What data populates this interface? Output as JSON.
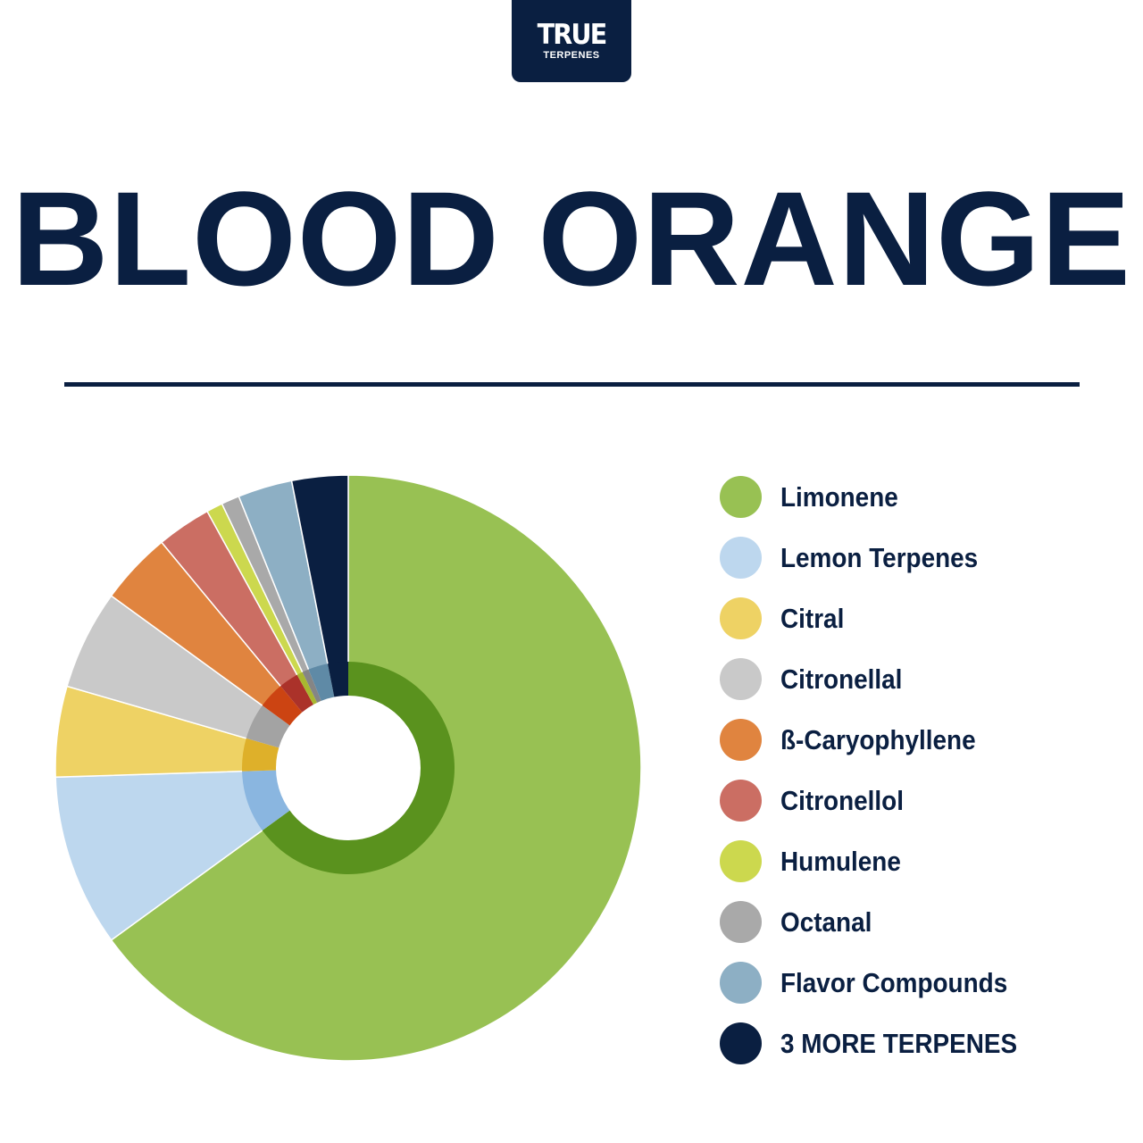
{
  "brand": {
    "logo_main": "TRUE",
    "logo_sub": "TERPENES",
    "primary_color": "#0a1f41"
  },
  "title": "BLOOD ORANGE",
  "chart_data": {
    "type": "pie",
    "title": "BLOOD ORANGE",
    "legend_position": "right",
    "series": [
      {
        "name": "Limonene",
        "value": 65,
        "color": "#98c153",
        "inner_color": "#5a921e"
      },
      {
        "name": "Lemon Terpenes",
        "value": 9.5,
        "color": "#bdd7ee",
        "inner_color": "#8ab6e0"
      },
      {
        "name": "Citral",
        "value": 5,
        "color": "#eed264",
        "inner_color": "#deb02a"
      },
      {
        "name": "Citronellal",
        "value": 5.5,
        "color": "#c9c9c9",
        "inner_color": "#a3a3a3"
      },
      {
        "name": "ß-Caryophyllene",
        "value": 4,
        "color": "#e0843f",
        "inner_color": "#cc4412"
      },
      {
        "name": "Citronellol",
        "value": 3,
        "color": "#cb6e63",
        "inner_color": "#ab322a"
      },
      {
        "name": "Humulene",
        "value": 0.9,
        "color": "#ccd84e",
        "inner_color": "#a8b830"
      },
      {
        "name": "Octanal",
        "value": 1,
        "color": "#a9a9a9",
        "inner_color": "#858585"
      },
      {
        "name": "Flavor Compounds",
        "value": 3,
        "color": "#8dafc4",
        "inner_color": "#5f8aa6"
      },
      {
        "name": "3 MORE TERPENES",
        "value": 3.1,
        "color": "#0a1f41",
        "inner_color": "#0a1f41"
      }
    ]
  }
}
